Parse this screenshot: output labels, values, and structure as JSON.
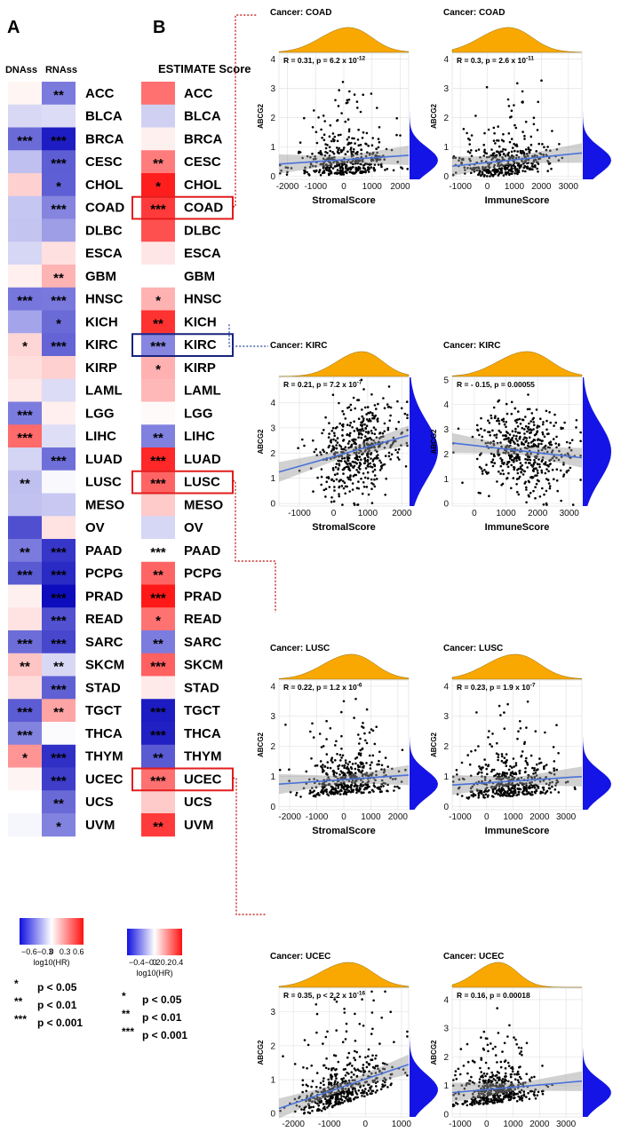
{
  "panels": {
    "a": "A",
    "b": "B"
  },
  "heatmap_a": {
    "col_labels": [
      "DNAss",
      "RNAss"
    ],
    "stars": [
      [
        "",
        "**"
      ],
      [
        "",
        ""
      ],
      [
        "***",
        "***"
      ],
      [
        "",
        "***"
      ],
      [
        "",
        "*"
      ],
      [
        "",
        "***"
      ],
      [
        "",
        ""
      ],
      [
        "",
        ""
      ],
      [
        "",
        "**"
      ],
      [
        "***",
        "***"
      ],
      [
        "",
        "*"
      ],
      [
        "*",
        "***"
      ],
      [
        "",
        ""
      ],
      [
        "",
        ""
      ],
      [
        "***",
        ""
      ],
      [
        "***",
        ""
      ],
      [
        "",
        "***"
      ],
      [
        "**",
        ""
      ],
      [
        "",
        ""
      ],
      [
        "",
        ""
      ],
      [
        "**",
        "***"
      ],
      [
        "***",
        "***"
      ],
      [
        "",
        "***"
      ],
      [
        "",
        "***"
      ],
      [
        "***",
        "***"
      ],
      [
        "**",
        "**"
      ],
      [
        "",
        "***"
      ],
      [
        "***",
        "**"
      ],
      [
        "***",
        ""
      ],
      [
        "*",
        "***"
      ],
      [
        "",
        "***"
      ],
      [
        "",
        "**"
      ],
      [
        "",
        "*"
      ]
    ],
    "colors": [
      [
        "#fff6f4",
        "#7b7bde"
      ],
      [
        "#d8d8f5",
        "#dcdcf6"
      ],
      [
        "#6b6bd8",
        "#1d1dc3"
      ],
      [
        "#bfbff0",
        "#5e5ed4"
      ],
      [
        "#ffd0d0",
        "#5f5fd5"
      ],
      [
        "#c6c6f2",
        "#8585e0"
      ],
      [
        "#c4c4f1",
        "#9e9ee7"
      ],
      [
        "#d6d6f5",
        "#ffe0e0"
      ],
      [
        "#fff0ef",
        "#ffb4b4"
      ],
      [
        "#7676dd",
        "#7979dd"
      ],
      [
        "#a4a4ea",
        "#6b6bd8"
      ],
      [
        "#ffd6d6",
        "#6464d6"
      ],
      [
        "#ffdede",
        "#ffd0d0"
      ],
      [
        "#ffe8e8",
        "#dcdcf6"
      ],
      [
        "#7c7cdf",
        "#fff0ef"
      ],
      [
        "#ff6a6a",
        "#dedef6"
      ],
      [
        "#d4d4f4",
        "#6f6fd9"
      ],
      [
        "#c0c0f0",
        "#f8f8fd"
      ],
      [
        "#c2c2f1",
        "#c8c8f2"
      ],
      [
        "#4f4fd0",
        "#ffe2e2"
      ],
      [
        "#7b7bde",
        "#3636c8"
      ],
      [
        "#5a5ad3",
        "#2a2ac5"
      ],
      [
        "#fff0f0",
        "#0d0dbe"
      ],
      [
        "#ffe2e2",
        "#5252d1"
      ],
      [
        "#6d6dd9",
        "#4747cd"
      ],
      [
        "#ffc4c4",
        "#d8d8f5"
      ],
      [
        "#ffdcdc",
        "#6060d5"
      ],
      [
        "#5c5cd4",
        "#ffa4a4"
      ],
      [
        "#8282df",
        "#fbfbfe"
      ],
      [
        "#ff9494",
        "#3030c6"
      ],
      [
        "#fff4f4",
        "#3e3ecb"
      ],
      [
        "#ffffff",
        "#6a6ad7"
      ],
      [
        "#f6f6fd",
        "#8282df"
      ]
    ]
  },
  "heatmap_b": {
    "title": "ESTIMATE Score",
    "cancers": [
      "ACC",
      "BLCA",
      "BRCA",
      "CESC",
      "CHOL",
      "COAD",
      "DLBC",
      "ESCA",
      "GBM",
      "HNSC",
      "KICH",
      "KIRC",
      "KIRP",
      "LAML",
      "LGG",
      "LIHC",
      "LUAD",
      "LUSC",
      "MESO",
      "OV",
      "PAAD",
      "PCPG",
      "PRAD",
      "READ",
      "SARC",
      "SKCM",
      "STAD",
      "TGCT",
      "THCA",
      "THYM",
      "UCEC",
      "UCS",
      "UVM"
    ],
    "stars": [
      "",
      "",
      "",
      "**",
      "*",
      "***",
      "",
      "",
      "",
      "*",
      "**",
      "***",
      "*",
      "",
      "",
      "**",
      "***",
      "***",
      "",
      "",
      "***",
      "**",
      "***",
      "*",
      "**",
      "***",
      "",
      "***",
      "***",
      "**",
      "***",
      "",
      "**"
    ],
    "colors": [
      "#ff7070",
      "#d0d0f3",
      "#fff0f0",
      "#ff7c7c",
      "#ff1e1e",
      "#ff3a3a",
      "#ff5050",
      "#ffe6e6",
      "#ffffff",
      "#ffb2b2",
      "#ff3232",
      "#8686e0",
      "#ffb0b0",
      "#ffb8b8",
      "#fffafa",
      "#8080df",
      "#ff2828",
      "#ff6464",
      "#ffcaca",
      "#d6d6f5",
      "#ffffff",
      "#ff6464",
      "#ff1818",
      "#ff7272",
      "#7c7cde",
      "#ff6060",
      "#ffeaea",
      "#1c1cc2",
      "#2020c3",
      "#5a5ad3",
      "#ff7070",
      "#ffcaca",
      "#ff3a3a"
    ],
    "boxed_red": [
      "COAD",
      "LUSC",
      "UCEC"
    ],
    "boxed_blue": [
      "KIRC"
    ]
  },
  "legend_a": {
    "ticks": [
      "−0.6−0.3",
      "0",
      "0.3",
      "0.6"
    ],
    "label": "log10(HR)"
  },
  "legend_b": {
    "ticks": [
      "−0.4−0.2",
      "0",
      "0.2",
      "0.4"
    ],
    "label": "log10(HR)"
  },
  "significance": [
    {
      "stars": "*",
      "text": "p < 0.05"
    },
    {
      "stars": "**",
      "text": "p < 0.01"
    },
    {
      "stars": "***",
      "text": "p < 0.001"
    }
  ],
  "scatter_plots": [
    {
      "title": "Cancer: COAD",
      "stat": "R = 0.31,  p = 6.2  x 10",
      "exp": "-12",
      "xlabel": "StromalScore",
      "ylabel": "ABCG2",
      "xticks": [
        -2000,
        -1000,
        0,
        1000,
        2000
      ],
      "xlim": [
        -2300,
        2300
      ],
      "yticks": [
        0,
        1,
        2,
        3,
        4
      ],
      "ylim": [
        -0.1,
        4.2
      ],
      "fit": [
        [
          -2300,
          0.42
        ],
        [
          2300,
          0.72
        ]
      ],
      "points": [
        [
          -1.0,
          0.6
        ],
        [
          -0.6,
          0.3
        ],
        [
          0.4,
          0.5
        ],
        [
          1.4,
          0.7
        ],
        [
          -0.2,
          0.9
        ],
        [
          0.8,
          1.1
        ],
        [
          -1.4,
          0.2
        ],
        [
          0.1,
          0.35
        ],
        [
          2.0,
          1.4
        ],
        [
          -0.8,
          1.6
        ],
        [
          0.6,
          2.2
        ],
        [
          -0.3,
          2.6
        ],
        [
          1.1,
          0.4
        ],
        [
          0.3,
          1.3
        ],
        [
          -1.6,
          0.8
        ],
        [
          1.7,
          0.9
        ],
        [
          -0.1,
          0.15
        ],
        [
          0.9,
          0.25
        ],
        [
          -0.5,
          1.0
        ],
        [
          0.2,
          2.9
        ]
      ],
      "n": 380,
      "xmode": 0,
      "xsd": 800,
      "ymean": 0.55
    },
    {
      "title": "Cancer: COAD",
      "stat": "R = 0.3,  p = 2.6  x 10",
      "exp": "-11",
      "xlabel": "ImmuneScore",
      "ylabel": "ABCG2",
      "xticks": [
        -1000,
        0,
        1000,
        2000,
        3000
      ],
      "xlim": [
        -1300,
        3500
      ],
      "yticks": [
        0,
        1,
        2,
        3,
        4
      ],
      "ylim": [
        -0.1,
        4.2
      ],
      "fit": [
        [
          -1300,
          0.35
        ],
        [
          3500,
          0.8
        ]
      ],
      "points": [
        [
          0.6,
          1.2
        ],
        [
          1.0,
          0.5
        ],
        [
          -0.4,
          0.3
        ],
        [
          1.6,
          0.9
        ],
        [
          0.2,
          0.2
        ],
        [
          2.1,
          1.0
        ],
        [
          -0.9,
          0.6
        ],
        [
          0.8,
          2.4
        ],
        [
          1.3,
          2.9
        ],
        [
          0.4,
          1.7
        ]
      ],
      "n": 380,
      "xmode": 600,
      "xsd": 850,
      "ymean": 0.55
    },
    {
      "title": "Cancer: KIRC",
      "stat": "R = 0.21,  p = 7.2  x 10",
      "exp": "-7",
      "xlabel": "StromalScore",
      "ylabel": "ABCG2",
      "xticks": [
        -1000,
        0,
        1000,
        2000
      ],
      "xlim": [
        -1600,
        2200
      ],
      "yticks": [
        0,
        1,
        2,
        3,
        4
      ],
      "ylim": [
        -0.1,
        5.0
      ],
      "fit": [
        [
          -1600,
          1.25
        ],
        [
          2200,
          2.7
        ]
      ],
      "points": [
        [
          0.9,
          2.5
        ],
        [
          0.5,
          3.2
        ],
        [
          1.3,
          1.8
        ],
        [
          -0.2,
          2.0
        ],
        [
          0.7,
          4.1
        ],
        [
          1.6,
          3.0
        ],
        [
          -1.0,
          1.3
        ],
        [
          0.3,
          0.6
        ]
      ],
      "n": 480,
      "xmode": 700,
      "xsd": 600,
      "ymean": 2.1
    },
    {
      "title": "Cancer: KIRC",
      "stat": "R = - 0.15,  p = 0.00055",
      "exp": "",
      "xlabel": "ImmuneScore",
      "ylabel": "ABCG2",
      "xticks": [
        0,
        1000,
        2000,
        3000
      ],
      "xlim": [
        -700,
        3400
      ],
      "yticks": [
        0,
        1,
        2,
        3,
        4,
        5
      ],
      "ylim": [
        -0.1,
        5.1
      ],
      "fit": [
        [
          -700,
          2.45
        ],
        [
          3400,
          1.85
        ]
      ],
      "points": [
        [
          1.5,
          2.4
        ],
        [
          1.0,
          3.1
        ],
        [
          2.0,
          1.6
        ],
        [
          0.4,
          2.3
        ],
        [
          2.6,
          2.7
        ],
        [
          1.7,
          4.4
        ],
        [
          0.9,
          0.8
        ]
      ],
      "n": 480,
      "xmode": 1500,
      "xsd": 750,
      "ymean": 2.1
    },
    {
      "title": "Cancer: LUSC",
      "stat": "R = 0.22,  p = 1.2  x 10",
      "exp": "-6",
      "xlabel": "StromalScore",
      "ylabel": "ABCG2",
      "xticks": [
        -2000,
        -1000,
        0,
        1000,
        2000
      ],
      "xlim": [
        -2400,
        2400
      ],
      "yticks": [
        0,
        1,
        2,
        3,
        4
      ],
      "ylim": [
        -0.1,
        4.2
      ],
      "fit": [
        [
          -2400,
          0.75
        ],
        [
          2400,
          1.05
        ]
      ],
      "points": [
        [
          0.0,
          3.5
        ],
        [
          -0.5,
          2.6
        ],
        [
          0.8,
          2.2
        ],
        [
          -1.2,
          1.6
        ],
        [
          1.4,
          0.5
        ],
        [
          0.3,
          1.0
        ]
      ],
      "n": 420,
      "xmode": 100,
      "xsd": 850,
      "ymean": 0.75
    },
    {
      "title": "Cancer: LUSC",
      "stat": "R = 0.23,  p = 1.9  x 10",
      "exp": "-7",
      "xlabel": "ImmuneScore",
      "ylabel": "ABCG2",
      "xticks": [
        -1000,
        0,
        1000,
        2000,
        3000
      ],
      "xlim": [
        -1300,
        3600
      ],
      "yticks": [
        0,
        1,
        2,
        3,
        4
      ],
      "ylim": [
        -0.1,
        4.2
      ],
      "fit": [
        [
          -1300,
          0.72
        ],
        [
          3600,
          1.0
        ]
      ],
      "points": [
        [
          0.8,
          3.4
        ],
        [
          1.2,
          2.5
        ],
        [
          0.2,
          2.0
        ],
        [
          1.9,
          1.4
        ],
        [
          -0.6,
          0.5
        ]
      ],
      "n": 420,
      "xmode": 900,
      "xsd": 900,
      "ymean": 0.75
    },
    {
      "title": "Cancer: UCEC",
      "stat": "R = 0.35,  p < 2.2  x 10",
      "exp": "-16",
      "xlabel": "StromalScore",
      "ylabel": "ABCG2",
      "xticks": [
        -2000,
        -1000,
        0,
        1000
      ],
      "xlim": [
        -2400,
        1200
      ],
      "yticks": [
        0,
        1,
        2,
        3
      ],
      "ylim": [
        -0.1,
        3.7
      ],
      "fit": [
        [
          -2400,
          0.15
        ],
        [
          1200,
          1.45
        ]
      ],
      "points": [
        [
          -0.6,
          1.3
        ],
        [
          0.2,
          2.5
        ],
        [
          -1.3,
          0.4
        ],
        [
          0.7,
          3.0
        ],
        [
          -0.9,
          0.7
        ]
      ],
      "n": 470,
      "xmode": -600,
      "xsd": 650,
      "ymean": 0.7
    },
    {
      "title": "Cancer: UCEC",
      "stat": "R = 0.16,  p = 0.00018",
      "exp": "",
      "xlabel": "ImmuneScore",
      "ylabel": "ABCG2",
      "xticks": [
        -1000,
        0,
        1000,
        2000,
        3000
      ],
      "xlim": [
        -1300,
        3600
      ],
      "yticks": [
        0,
        1,
        2,
        3,
        4
      ],
      "ylim": [
        -0.1,
        4.4
      ],
      "fit": [
        [
          -1300,
          0.75
        ],
        [
          3600,
          1.15
        ]
      ],
      "points": [
        [
          0.4,
          3.7
        ],
        [
          1.1,
          2.6
        ],
        [
          -0.2,
          1.9
        ],
        [
          1.8,
          1.3
        ]
      ],
      "n": 470,
      "xmode": 300,
      "xsd": 700,
      "ymean": 0.75
    }
  ],
  "chart_data": [
    {
      "type": "heatmap",
      "title": "",
      "x": [
        "DNAss",
        "RNAss"
      ],
      "y": [
        "ACC",
        "BLCA",
        "BRCA",
        "CESC",
        "CHOL",
        "COAD",
        "DLBC",
        "ESCA",
        "GBM",
        "HNSC",
        "KICH",
        "KIRC",
        "KIRP",
        "LAML",
        "LGG",
        "LIHC",
        "LUAD",
        "LUSC",
        "MESO",
        "OV",
        "PAAD",
        "PCPG",
        "PRAD",
        "READ",
        "SARC",
        "SKCM",
        "STAD",
        "TGCT",
        "THCA",
        "THYM",
        "UCEC",
        "UCS",
        "UVM"
      ],
      "legend_label": "log10(HR)",
      "scale": [
        -0.6,
        0.6
      ]
    },
    {
      "type": "heatmap",
      "title": "ESTIMATE Score",
      "legend_label": "log10(HR)",
      "scale": [
        -0.4,
        0.4
      ]
    },
    {
      "type": "scatter",
      "title": "Cancer: COAD",
      "xlabel": "StromalScore",
      "ylabel": "ABCG2",
      "R": 0.31,
      "p": "6.2 x 10^-12"
    },
    {
      "type": "scatter",
      "title": "Cancer: COAD",
      "xlabel": "ImmuneScore",
      "ylabel": "ABCG2",
      "R": 0.3,
      "p": "2.6 x 10^-11"
    },
    {
      "type": "scatter",
      "title": "Cancer: KIRC",
      "xlabel": "StromalScore",
      "ylabel": "ABCG2",
      "R": 0.21,
      "p": "7.2 x 10^-7"
    },
    {
      "type": "scatter",
      "title": "Cancer: KIRC",
      "xlabel": "ImmuneScore",
      "ylabel": "ABCG2",
      "R": -0.15,
      "p": "0.00055"
    },
    {
      "type": "scatter",
      "title": "Cancer: LUSC",
      "xlabel": "StromalScore",
      "ylabel": "ABCG2",
      "R": 0.22,
      "p": "1.2 x 10^-6"
    },
    {
      "type": "scatter",
      "title": "Cancer: LUSC",
      "xlabel": "ImmuneScore",
      "ylabel": "ABCG2",
      "R": 0.23,
      "p": "1.9 x 10^-7"
    },
    {
      "type": "scatter",
      "title": "Cancer: UCEC",
      "xlabel": "StromalScore",
      "ylabel": "ABCG2",
      "R": 0.35,
      "p": "< 2.2 x 10^-16"
    },
    {
      "type": "scatter",
      "title": "Cancer: UCEC",
      "xlabel": "ImmuneScore",
      "ylabel": "ABCG2",
      "R": 0.16,
      "p": "0.00018"
    }
  ],
  "colors": {
    "orange": "#f8a800",
    "blue": "#1414e6",
    "red_box": "#e21d1d",
    "navy_box": "#1a237e",
    "fit_line": "#4a72d8",
    "dotted": "#c00000"
  }
}
